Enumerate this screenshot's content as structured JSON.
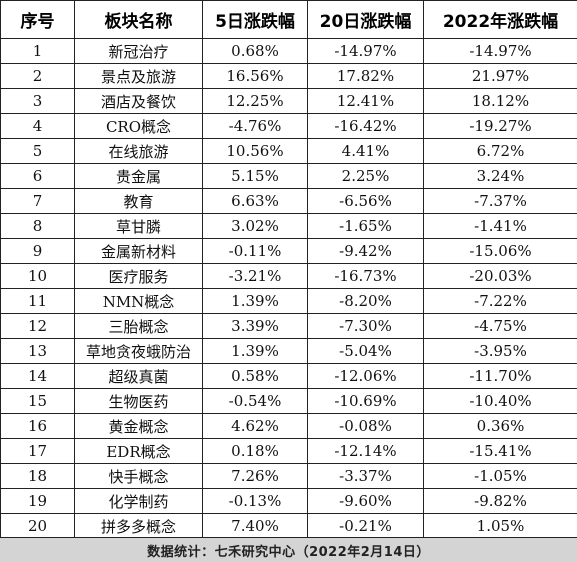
{
  "table": {
    "headers": [
      "序号",
      "板块名称",
      "5日涨跌幅",
      "20日涨跌幅",
      "2022年涨跌幅"
    ],
    "rows": [
      [
        "1",
        "新冠治疗",
        "0.68%",
        "-14.97%",
        "-14.97%"
      ],
      [
        "2",
        "景点及旅游",
        "16.56%",
        "17.82%",
        "21.97%"
      ],
      [
        "3",
        "酒店及餐饮",
        "12.25%",
        "12.41%",
        "18.12%"
      ],
      [
        "4",
        "CRO概念",
        "-4.76%",
        "-16.42%",
        "-19.27%"
      ],
      [
        "5",
        "在线旅游",
        "10.56%",
        "4.41%",
        "6.72%"
      ],
      [
        "6",
        "贵金属",
        "5.15%",
        "2.25%",
        "3.24%"
      ],
      [
        "7",
        "教育",
        "6.63%",
        "-6.56%",
        "-7.37%"
      ],
      [
        "8",
        "草甘膦",
        "3.02%",
        "-1.65%",
        "-1.41%"
      ],
      [
        "9",
        "金属新材料",
        "-0.11%",
        "-9.42%",
        "-15.06%"
      ],
      [
        "10",
        "医疗服务",
        "-3.21%",
        "-16.73%",
        "-20.03%"
      ],
      [
        "11",
        "NMN概念",
        "1.39%",
        "-8.20%",
        "-7.22%"
      ],
      [
        "12",
        "三胎概念",
        "3.39%",
        "-7.30%",
        "-4.75%"
      ],
      [
        "13",
        "草地贪夜蛾防治",
        "1.39%",
        "-5.04%",
        "-3.95%"
      ],
      [
        "14",
        "超级真菌",
        "0.58%",
        "-12.06%",
        "-11.70%"
      ],
      [
        "15",
        "生物医药",
        "-0.54%",
        "-10.69%",
        "-10.40%"
      ],
      [
        "16",
        "黄金概念",
        "4.62%",
        "-0.08%",
        "0.36%"
      ],
      [
        "17",
        "EDR概念",
        "0.18%",
        "-12.14%",
        "-15.41%"
      ],
      [
        "18",
        "快手概念",
        "7.26%",
        "-3.37%",
        "-1.05%"
      ],
      [
        "19",
        "化学制药",
        "-0.13%",
        "-9.60%",
        "-9.82%"
      ],
      [
        "20",
        "拼多多概念",
        "7.40%",
        "-0.21%",
        "1.05%"
      ]
    ]
  },
  "footer": {
    "source": "数据统计：七禾研究中心（2022年2月14日）"
  },
  "colors": {
    "footer_background": "#d4d4d4",
    "grid_line": "#222222"
  }
}
